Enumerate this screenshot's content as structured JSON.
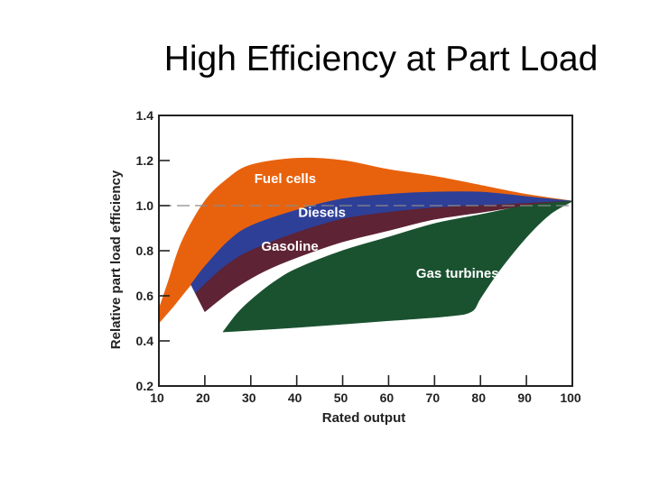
{
  "slide": {
    "title": "High Efficiency at Part Load"
  },
  "chart_data": {
    "type": "area",
    "title": "High Efficiency at Part Load",
    "xlabel": "Rated output",
    "ylabel": "Relative part load efficiency",
    "xlim": [
      10,
      100
    ],
    "ylim": [
      0.2,
      1.4
    ],
    "xticks": [
      "10",
      "20",
      "30",
      "40",
      "50",
      "60",
      "70",
      "80",
      "90",
      "100"
    ],
    "yticks": [
      "0.2",
      "0.4",
      "0.6",
      "0.8",
      "1.0",
      "1.2",
      "1.4"
    ],
    "reference_line": 1.0,
    "series": [
      {
        "name": "Fuel cells",
        "color": "#e8620e",
        "upper": [
          [
            10,
            0.54
          ],
          [
            12,
            0.66
          ],
          [
            15,
            0.84
          ],
          [
            20,
            1.02
          ],
          [
            25,
            1.12
          ],
          [
            30,
            1.18
          ],
          [
            40,
            1.21
          ],
          [
            50,
            1.2
          ],
          [
            60,
            1.16
          ],
          [
            70,
            1.13
          ],
          [
            80,
            1.09
          ],
          [
            90,
            1.05
          ],
          [
            100,
            1.02
          ]
        ],
        "lower": [
          [
            10,
            0.48
          ],
          [
            13,
            0.55
          ],
          [
            17,
            0.65
          ],
          [
            22,
            0.76
          ],
          [
            30,
            0.88
          ],
          [
            40,
            0.97
          ],
          [
            50,
            1.03
          ],
          [
            60,
            1.05
          ],
          [
            70,
            1.06
          ],
          [
            80,
            1.06
          ],
          [
            90,
            1.04
          ],
          [
            100,
            1.02
          ]
        ]
      },
      {
        "name": "Diesels",
        "color": "#2e3f97",
        "upper": [
          [
            17,
            0.65
          ],
          [
            20,
            0.73
          ],
          [
            25,
            0.84
          ],
          [
            30,
            0.91
          ],
          [
            40,
            0.98
          ],
          [
            50,
            1.03
          ],
          [
            60,
            1.05
          ],
          [
            70,
            1.06
          ],
          [
            80,
            1.06
          ],
          [
            90,
            1.04
          ],
          [
            100,
            1.02
          ]
        ],
        "lower": [
          [
            18,
            0.61
          ],
          [
            21,
            0.67
          ],
          [
            25,
            0.74
          ],
          [
            30,
            0.8
          ],
          [
            40,
            0.88
          ],
          [
            50,
            0.94
          ],
          [
            60,
            0.97
          ],
          [
            70,
            0.99
          ],
          [
            80,
            1.0
          ],
          [
            90,
            1.01
          ],
          [
            100,
            1.02
          ]
        ]
      },
      {
        "name": "Gasoline",
        "color": "#5e2335",
        "upper": [
          [
            18,
            0.61
          ],
          [
            21,
            0.67
          ],
          [
            25,
            0.74
          ],
          [
            30,
            0.8
          ],
          [
            40,
            0.88
          ],
          [
            50,
            0.94
          ],
          [
            60,
            0.97
          ],
          [
            70,
            0.99
          ],
          [
            80,
            1.0
          ],
          [
            90,
            1.01
          ],
          [
            100,
            1.02
          ]
        ],
        "lower": [
          [
            20,
            0.53
          ],
          [
            23,
            0.58
          ],
          [
            27,
            0.64
          ],
          [
            33,
            0.71
          ],
          [
            40,
            0.77
          ],
          [
            50,
            0.84
          ],
          [
            60,
            0.89
          ],
          [
            70,
            0.94
          ],
          [
            80,
            0.97
          ],
          [
            90,
            1.0
          ],
          [
            100,
            1.02
          ]
        ]
      },
      {
        "name": "Gas turbines",
        "color": "#1a5230",
        "upper": [
          [
            24,
            0.44
          ],
          [
            27,
            0.52
          ],
          [
            30,
            0.58
          ],
          [
            35,
            0.66
          ],
          [
            40,
            0.72
          ],
          [
            50,
            0.8
          ],
          [
            60,
            0.86
          ],
          [
            70,
            0.92
          ],
          [
            80,
            0.96
          ],
          [
            90,
            1.0
          ],
          [
            100,
            1.02
          ]
        ],
        "lower": [
          [
            24,
            0.44
          ],
          [
            40,
            0.46
          ],
          [
            60,
            0.49
          ],
          [
            73,
            0.51
          ],
          [
            78,
            0.53
          ],
          [
            80,
            0.59
          ],
          [
            84,
            0.71
          ],
          [
            90,
            0.86
          ],
          [
            95,
            0.96
          ],
          [
            100,
            1.02
          ]
        ]
      }
    ],
    "labels": [
      {
        "text": "Fuel cells",
        "x": 37.5,
        "y": 1.1,
        "color": "#ffffff"
      },
      {
        "text": "Diesels",
        "x": 45.5,
        "y": 0.95,
        "color": "#ffffff"
      },
      {
        "text": "Gasoline",
        "x": 38.5,
        "y": 0.8,
        "color": "#ffffff"
      },
      {
        "text": "Gas turbines",
        "x": 75,
        "y": 0.68,
        "color": "#ffffff"
      }
    ]
  }
}
